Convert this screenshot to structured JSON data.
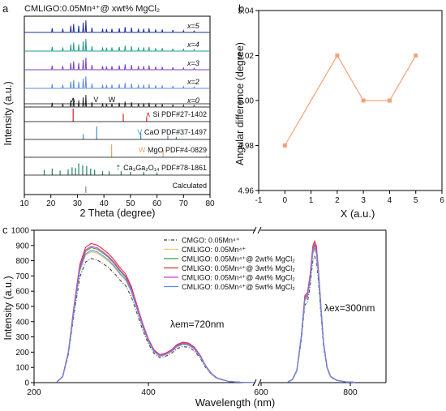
{
  "chart_data": [
    {
      "type": "line",
      "panel_label": "a",
      "title": "CMLIGO:0.05Mn⁴⁺@ xwt% MgCl₂",
      "xlabel": "2 Theta (degree)",
      "ylabel": "Intensity (a.u.)",
      "xlim": [
        10,
        80
      ],
      "xticks": [
        10,
        20,
        30,
        40,
        50,
        60,
        70,
        80
      ],
      "stacked_patterns": [
        {
          "label": "x=5",
          "color": "#1f2f9e"
        },
        {
          "label": "x=4",
          "color": "#1f9e8a"
        },
        {
          "label": "x=3",
          "color": "#7b3fc4"
        },
        {
          "label": "x=2",
          "color": "#5e8ee0"
        },
        {
          "label": "x=0",
          "color": "#333333"
        }
      ],
      "main_peaks_2theta": [
        {
          "x": 20.5,
          "h": 0.35
        },
        {
          "x": 24.5,
          "h": 0.3
        },
        {
          "x": 27.5,
          "h": 0.55
        },
        {
          "x": 28.6,
          "h": 0.7
        },
        {
          "x": 30.5,
          "h": 0.55
        },
        {
          "x": 32.2,
          "h": 0.8
        },
        {
          "x": 33.2,
          "h": 1.0
        },
        {
          "x": 35.5,
          "h": 0.4
        },
        {
          "x": 39.5,
          "h": 0.3
        },
        {
          "x": 41.0,
          "h": 0.28
        },
        {
          "x": 43.0,
          "h": 0.3
        },
        {
          "x": 45.8,
          "h": 0.35
        },
        {
          "x": 48.0,
          "h": 0.45
        },
        {
          "x": 50.4,
          "h": 0.4
        },
        {
          "x": 53.0,
          "h": 0.3
        },
        {
          "x": 55.0,
          "h": 0.3
        },
        {
          "x": 57.0,
          "h": 0.35
        },
        {
          "x": 59.5,
          "h": 0.25
        },
        {
          "x": 62.0,
          "h": 0.25
        },
        {
          "x": 66.0,
          "h": 0.2
        },
        {
          "x": 70.0,
          "h": 0.15
        },
        {
          "x": 74.0,
          "h": 0.12
        }
      ],
      "phase_markers": [
        {
          "symbol": "∧",
          "x": 28.4,
          "color": "#e0302a"
        },
        {
          "symbol": "V",
          "x": 37.0,
          "color": "#3a8fd6"
        },
        {
          "symbol": "W",
          "x": 43.0,
          "color": "#f0a070"
        }
      ],
      "references": [
        {
          "label": "Si PDF#27-1402",
          "marker": "∧",
          "color": "#d42020",
          "peaks": [
            {
              "x": 28.4,
              "h": 1.0
            },
            {
              "x": 47.3,
              "h": 0.6
            },
            {
              "x": 56.1,
              "h": 0.35
            }
          ]
        },
        {
          "label": "CaO PDF#37-1497",
          "marker": "V",
          "color": "#3a8fd6",
          "peaks": [
            {
              "x": 32.2,
              "h": 0.4
            },
            {
              "x": 37.3,
              "h": 1.0
            },
            {
              "x": 53.9,
              "h": 0.5
            },
            {
              "x": 64.1,
              "h": 0.3
            },
            {
              "x": 67.3,
              "h": 0.2
            }
          ]
        },
        {
          "label": "MgO PDF#4-0829",
          "marker": "W",
          "color": "#f0a070",
          "peaks": [
            {
              "x": 42.9,
              "h": 1.0
            },
            {
              "x": 62.3,
              "h": 0.6
            },
            {
              "x": 78.6,
              "h": 0.15
            }
          ]
        },
        {
          "label": "Ca₃Ga₂O₁₄ PDF#78-1861",
          "marker": "⇡",
          "color": "#1f8060",
          "peaks": [
            {
              "x": 17.5,
              "h": 0.4
            },
            {
              "x": 20.5,
              "h": 0.5
            },
            {
              "x": 23.5,
              "h": 0.35
            },
            {
              "x": 26.5,
              "h": 0.45
            },
            {
              "x": 28.0,
              "h": 0.6
            },
            {
              "x": 29.3,
              "h": 0.55
            },
            {
              "x": 30.5,
              "h": 0.9
            },
            {
              "x": 32.0,
              "h": 0.75
            },
            {
              "x": 33.5,
              "h": 0.7
            },
            {
              "x": 35.0,
              "h": 0.5
            },
            {
              "x": 36.5,
              "h": 0.4
            },
            {
              "x": 39.5,
              "h": 0.3
            },
            {
              "x": 42.0,
              "h": 0.3
            },
            {
              "x": 46.5,
              "h": 0.3
            },
            {
              "x": 50.0,
              "h": 0.25
            },
            {
              "x": 55.0,
              "h": 0.25
            },
            {
              "x": 60.0,
              "h": 0.2
            }
          ]
        },
        {
          "label": "Calculated",
          "marker": "",
          "color": "#888888",
          "peaks": [
            {
              "x": 33.2,
              "h": 0.5
            }
          ]
        }
      ]
    },
    {
      "type": "line",
      "panel_label": "b",
      "xlabel": "X (a.u.)",
      "ylabel": "Angular difference (degree)",
      "xlim": [
        -1,
        6
      ],
      "ylim": [
        4.96,
        5.04
      ],
      "xticks": [
        -1,
        0,
        1,
        2,
        3,
        4,
        5,
        6
      ],
      "yticks": [
        4.96,
        4.98,
        5.0,
        5.02,
        5.04
      ],
      "color": "#f4a27a",
      "x": [
        0,
        2,
        3,
        4,
        5
      ],
      "values": [
        4.98,
        5.02,
        5.0,
        5.0,
        5.02
      ]
    },
    {
      "type": "line",
      "panel_label": "c",
      "xlabel": "Wavelength (nm)",
      "ylabel": "Intensity (a.u.)",
      "xticks": [
        200,
        400,
        600,
        800
      ],
      "yticks": [
        0,
        100,
        200,
        300,
        400,
        500,
        600,
        700,
        800,
        900,
        1000
      ],
      "ylim": [
        0,
        1000
      ],
      "annotations": [
        "λem=720nm",
        "λex=300nm"
      ],
      "series": [
        {
          "name": "CMGO: 0.05Mn⁴⁺",
          "color": "#444444",
          "dash": true,
          "scale": 0.91
        },
        {
          "name": "CMLIGO: 0.05Mn⁴⁺",
          "color": "#f2c16a",
          "dash": false,
          "scale": 0.96
        },
        {
          "name": "CMLIGO: 0.05Mn⁴⁺@ 2wt% MgCl₂",
          "color": "#3f9c3f",
          "dash": false,
          "scale": 0.99
        },
        {
          "name": "CMLIGO: 0.05Mn⁴⁺@ 3wt% MgCl₂",
          "color": "#e03030",
          "dash": false,
          "scale": 1.02
        },
        {
          "name": "CMLIGO: 0.05Mn⁴⁺@ 4wt% MgCl₂",
          "color": "#d040d0",
          "dash": false,
          "scale": 1.0
        },
        {
          "name": "CMLIGO: 0.05Mn⁴⁺@ 5wt% MgCl₂",
          "color": "#5a8ee8",
          "dash": false,
          "scale": 0.97
        }
      ],
      "excitation_profile": [
        [
          240,
          5
        ],
        [
          250,
          40
        ],
        [
          260,
          200
        ],
        [
          270,
          500
        ],
        [
          280,
          760
        ],
        [
          290,
          870
        ],
        [
          300,
          895
        ],
        [
          310,
          885
        ],
        [
          320,
          860
        ],
        [
          330,
          830
        ],
        [
          340,
          790
        ],
        [
          350,
          740
        ],
        [
          360,
          700
        ],
        [
          370,
          620
        ],
        [
          380,
          500
        ],
        [
          390,
          380
        ],
        [
          400,
          280
        ],
        [
          410,
          210
        ],
        [
          420,
          180
        ],
        [
          430,
          190
        ],
        [
          440,
          210
        ],
        [
          450,
          245
        ],
        [
          460,
          260
        ],
        [
          470,
          255
        ],
        [
          480,
          230
        ],
        [
          490,
          180
        ],
        [
          500,
          110
        ],
        [
          510,
          60
        ],
        [
          520,
          30
        ],
        [
          540,
          8
        ],
        [
          560,
          3
        ],
        [
          585,
          0
        ]
      ],
      "emission_profile": [
        [
          660,
          5
        ],
        [
          670,
          20
        ],
        [
          680,
          80
        ],
        [
          690,
          300
        ],
        [
          698,
          560
        ],
        [
          704,
          580
        ],
        [
          710,
          700
        ],
        [
          716,
          880
        ],
        [
          720,
          910
        ],
        [
          724,
          880
        ],
        [
          728,
          750
        ],
        [
          734,
          500
        ],
        [
          740,
          260
        ],
        [
          748,
          100
        ],
        [
          756,
          40
        ],
        [
          770,
          15
        ],
        [
          790,
          5
        ],
        [
          810,
          2
        ]
      ]
    }
  ]
}
